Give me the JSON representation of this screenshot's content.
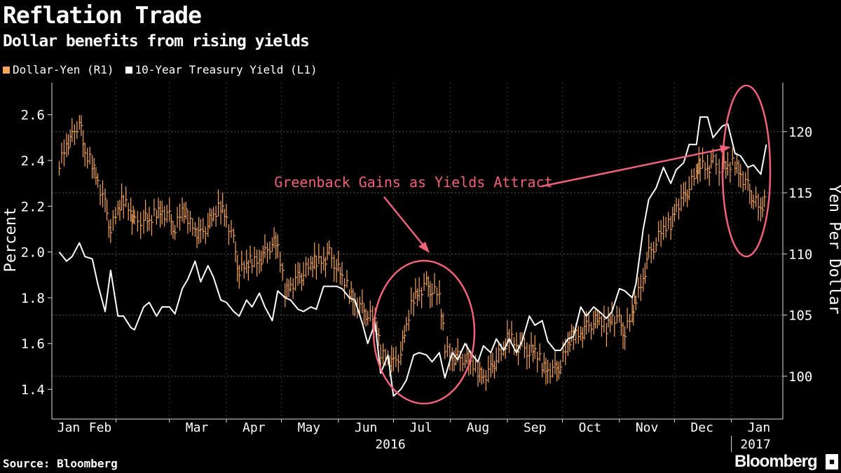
{
  "header": {
    "title": "Reflation Trade",
    "subtitle": "Dollar benefits from rising yields"
  },
  "legend": [
    {
      "label": "Dollar-Yen (R1)",
      "color": "#f5a55c"
    },
    {
      "label": "10-Year Treasury Yield (L1)",
      "color": "#ffffff"
    }
  ],
  "footer": {
    "source": "Source: Bloomberg",
    "brand": "Bloomberg",
    "brand_icon": "bloomberg-terminal-icon"
  },
  "colors": {
    "background": "#000000",
    "yen": "#f5a55c",
    "yield": "#ffffff",
    "annotation": "#f0627a",
    "grid": "#666666"
  },
  "chart_data": {
    "type": "line",
    "xlabel": "",
    "ylabel_left": "Percent",
    "ylabel_right": "Yen Per Dollar",
    "x_ticks": [
      "Jan",
      "Feb",
      "Mar",
      "Apr",
      "May",
      "Jun",
      "Jul",
      "Aug",
      "Sep",
      "Oct",
      "Nov",
      "Dec",
      "Jan"
    ],
    "year_labels": [
      "2016",
      "2017"
    ],
    "y_left": {
      "ticks": [
        "1.4",
        "1.6",
        "1.8",
        "2.0",
        "2.2",
        "2.4",
        "2.6"
      ],
      "range": [
        1.27,
        2.74
      ]
    },
    "y_right": {
      "ticks": [
        "100",
        "105",
        "110",
        "115",
        "120"
      ],
      "range": [
        96.5,
        124
      ]
    },
    "grid": true,
    "annotations": [
      {
        "text": "Greenback Gains as Yields Attract"
      }
    ],
    "series": [
      {
        "name": "10-Year Treasury Yield (L1)",
        "axis": "left",
        "style": "line",
        "dates": [
          "2016-01-01",
          "2016-01-05",
          "2016-01-08",
          "2016-01-12",
          "2016-01-15",
          "2016-01-19",
          "2016-01-22",
          "2016-01-26",
          "2016-01-29",
          "2016-02-02",
          "2016-02-05",
          "2016-02-09",
          "2016-02-11",
          "2016-02-16",
          "2016-02-19",
          "2016-02-23",
          "2016-02-26",
          "2016-03-01",
          "2016-03-04",
          "2016-03-08",
          "2016-03-11",
          "2016-03-15",
          "2016-03-18",
          "2016-03-22",
          "2016-03-25",
          "2016-03-29",
          "2016-04-01",
          "2016-04-05",
          "2016-04-08",
          "2016-04-12",
          "2016-04-15",
          "2016-04-19",
          "2016-04-22",
          "2016-04-26",
          "2016-04-29",
          "2016-05-03",
          "2016-05-06",
          "2016-05-10",
          "2016-05-13",
          "2016-05-17",
          "2016-05-20",
          "2016-05-24",
          "2016-05-27",
          "2016-05-31",
          "2016-06-03",
          "2016-06-07",
          "2016-06-10",
          "2016-06-14",
          "2016-06-17",
          "2016-06-21",
          "2016-06-24",
          "2016-06-28",
          "2016-07-01",
          "2016-07-05",
          "2016-07-08",
          "2016-07-12",
          "2016-07-15",
          "2016-07-19",
          "2016-07-22",
          "2016-07-26",
          "2016-07-29",
          "2016-08-02",
          "2016-08-05",
          "2016-08-09",
          "2016-08-12",
          "2016-08-16",
          "2016-08-19",
          "2016-08-23",
          "2016-08-26",
          "2016-08-30",
          "2016-09-02",
          "2016-09-06",
          "2016-09-09",
          "2016-09-13",
          "2016-09-16",
          "2016-09-20",
          "2016-09-23",
          "2016-09-27",
          "2016-09-30",
          "2016-10-04",
          "2016-10-07",
          "2016-10-11",
          "2016-10-14",
          "2016-10-18",
          "2016-10-21",
          "2016-10-25",
          "2016-10-28",
          "2016-11-01",
          "2016-11-04",
          "2016-11-08",
          "2016-11-10",
          "2016-11-14",
          "2016-11-17",
          "2016-11-21",
          "2016-11-25",
          "2016-11-29",
          "2016-12-02",
          "2016-12-06",
          "2016-12-09",
          "2016-12-13",
          "2016-12-15",
          "2016-12-19",
          "2016-12-22",
          "2016-12-27",
          "2016-12-30",
          "2017-01-03",
          "2017-01-06",
          "2017-01-10",
          "2017-01-13",
          "2017-01-17",
          "2017-01-20"
        ],
        "values": [
          2.0,
          1.96,
          1.98,
          2.04,
          1.98,
          1.97,
          1.86,
          1.74,
          1.92,
          1.72,
          1.72,
          1.67,
          1.66,
          1.76,
          1.78,
          1.72,
          1.76,
          1.76,
          1.73,
          1.84,
          1.88,
          1.96,
          1.87,
          1.94,
          1.89,
          1.79,
          1.78,
          1.74,
          1.72,
          1.79,
          1.76,
          1.82,
          1.76,
          1.7,
          1.83,
          1.8,
          1.79,
          1.75,
          1.74,
          1.76,
          1.75,
          1.85,
          1.85,
          1.85,
          1.84,
          1.8,
          1.79,
          1.69,
          1.6,
          1.69,
          1.47,
          1.55,
          1.37,
          1.4,
          1.44,
          1.55,
          1.56,
          1.55,
          1.52,
          1.56,
          1.45,
          1.56,
          1.53,
          1.6,
          1.56,
          1.52,
          1.59,
          1.56,
          1.62,
          1.57,
          1.62,
          1.56,
          1.61,
          1.72,
          1.68,
          1.7,
          1.61,
          1.57,
          1.57,
          1.62,
          1.63,
          1.76,
          1.72,
          1.76,
          1.74,
          1.71,
          1.74,
          1.84,
          1.83,
          1.8,
          1.86,
          2.1,
          2.23,
          2.28,
          2.37,
          2.3,
          2.36,
          2.39,
          2.47,
          2.47,
          2.59,
          2.59,
          2.5,
          2.55,
          2.56,
          2.43,
          2.42,
          2.37,
          2.38,
          2.34,
          2.47
        ]
      },
      {
        "name": "Dollar-Yen (R1)",
        "axis": "right",
        "style": "ohlc",
        "dates": [
          "2016-01-01",
          "2016-01-05",
          "2016-01-08",
          "2016-01-12",
          "2016-01-15",
          "2016-01-19",
          "2016-01-22",
          "2016-01-26",
          "2016-01-29",
          "2016-02-02",
          "2016-02-05",
          "2016-02-09",
          "2016-02-11",
          "2016-02-16",
          "2016-02-19",
          "2016-02-23",
          "2016-02-26",
          "2016-03-01",
          "2016-03-04",
          "2016-03-08",
          "2016-03-11",
          "2016-03-15",
          "2016-03-18",
          "2016-03-22",
          "2016-03-25",
          "2016-03-29",
          "2016-04-01",
          "2016-04-05",
          "2016-04-08",
          "2016-04-12",
          "2016-04-15",
          "2016-04-19",
          "2016-04-22",
          "2016-04-26",
          "2016-04-29",
          "2016-05-03",
          "2016-05-06",
          "2016-05-10",
          "2016-05-13",
          "2016-05-17",
          "2016-05-20",
          "2016-05-24",
          "2016-05-27",
          "2016-05-31",
          "2016-06-03",
          "2016-06-07",
          "2016-06-10",
          "2016-06-14",
          "2016-06-17",
          "2016-06-21",
          "2016-06-24",
          "2016-06-28",
          "2016-07-01",
          "2016-07-05",
          "2016-07-08",
          "2016-07-12",
          "2016-07-15",
          "2016-07-19",
          "2016-07-22",
          "2016-07-26",
          "2016-07-29",
          "2016-08-02",
          "2016-08-05",
          "2016-08-09",
          "2016-08-12",
          "2016-08-16",
          "2016-08-19",
          "2016-08-23",
          "2016-08-26",
          "2016-08-30",
          "2016-09-02",
          "2016-09-06",
          "2016-09-09",
          "2016-09-13",
          "2016-09-16",
          "2016-09-20",
          "2016-09-23",
          "2016-09-27",
          "2016-09-30",
          "2016-10-04",
          "2016-10-07",
          "2016-10-11",
          "2016-10-14",
          "2016-10-18",
          "2016-10-21",
          "2016-10-25",
          "2016-10-28",
          "2016-11-01",
          "2016-11-04",
          "2016-11-08",
          "2016-11-10",
          "2016-11-14",
          "2016-11-17",
          "2016-11-21",
          "2016-11-25",
          "2016-11-29",
          "2016-12-02",
          "2016-12-06",
          "2016-12-09",
          "2016-12-13",
          "2016-12-15",
          "2016-12-19",
          "2016-12-22",
          "2016-12-27",
          "2016-12-30",
          "2017-01-03",
          "2017-01-06",
          "2017-01-10",
          "2017-01-13",
          "2017-01-17",
          "2017-01-20"
        ],
        "values": [
          117.5,
          119.0,
          119.5,
          121.0,
          118.0,
          117.5,
          116.0,
          114.0,
          112.0,
          113.5,
          114.5,
          113.5,
          112.5,
          113.0,
          112.5,
          113.5,
          113.5,
          113.0,
          112.0,
          113.5,
          113.0,
          112.0,
          111.5,
          112.5,
          113.0,
          114.0,
          113.0,
          111.0,
          108.5,
          109.0,
          109.5,
          109.5,
          110.0,
          111.0,
          110.5,
          107.0,
          107.5,
          108.0,
          108.5,
          109.0,
          109.5,
          109.5,
          110.0,
          109.0,
          108.0,
          107.0,
          106.0,
          105.5,
          105.0,
          104.5,
          102.0,
          101.5,
          101.0,
          102.0,
          104.0,
          106.5,
          107.0,
          107.5,
          107.0,
          106.5,
          102.5,
          101.5,
          101.5,
          101.5,
          101.0,
          100.5,
          100.0,
          100.5,
          101.5,
          102.0,
          103.5,
          102.5,
          102.5,
          102.0,
          102.0,
          101.0,
          100.5,
          100.5,
          101.0,
          102.5,
          103.5,
          103.5,
          104.0,
          104.5,
          104.5,
          104.0,
          105.0,
          104.5,
          103.5,
          105.0,
          106.5,
          108.0,
          110.0,
          111.0,
          112.0,
          112.5,
          114.0,
          114.5,
          115.5,
          116.5,
          117.5,
          117.0,
          117.5,
          117.0,
          117.0,
          117.5,
          116.5,
          115.5,
          114.5,
          113.5,
          114.5
        ]
      }
    ]
  }
}
